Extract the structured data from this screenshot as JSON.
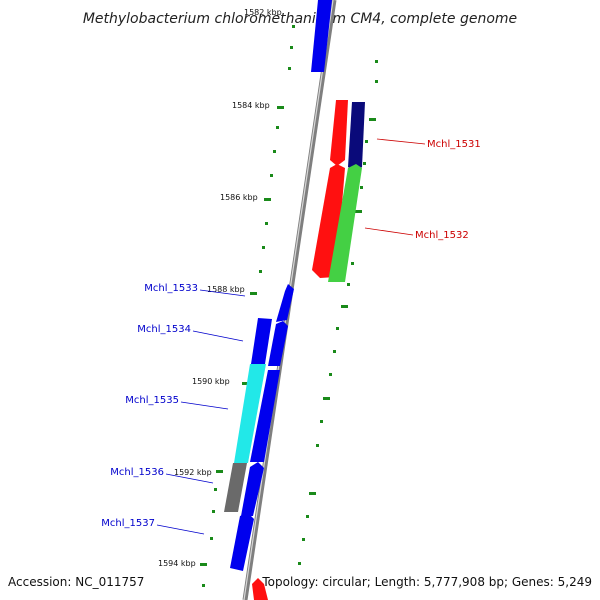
{
  "title": "Methylobacterium chloromethanicum CM4, complete genome",
  "footer": {
    "accession": "Accession: NC_011757",
    "summary": "Topology: circular; Length: 5,777,908 bp; Genes: 5,249"
  },
  "colors": {
    "backbone": "#8a8a8a",
    "tick": "#1a8a1a",
    "label_blue": "#0000cc",
    "label_red": "#cc0000"
  },
  "ticks": {
    "unit": "kbp",
    "major": [
      {
        "kbp": 1582,
        "label": "1582 kbp",
        "faded": true
      },
      {
        "kbp": 1584,
        "label": "1584 kbp"
      },
      {
        "kbp": 1586,
        "label": "1586 kbp"
      },
      {
        "kbp": 1588,
        "label": "1588 kbp"
      },
      {
        "kbp": 1590,
        "label": "1590 kbp"
      },
      {
        "kbp": 1592,
        "label": "1592 kbp"
      },
      {
        "kbp": 1594,
        "label": "1594 kbp"
      }
    ]
  },
  "genes": [
    {
      "name": "Mchl_1531",
      "label_color": "#cc0000"
    },
    {
      "name": "Mchl_1532",
      "label_color": "#cc0000"
    },
    {
      "name": "Mchl_1533",
      "label_color": "#0000cc"
    },
    {
      "name": "Mchl_1534",
      "label_color": "#0000cc"
    },
    {
      "name": "Mchl_1535",
      "label_color": "#0000cc"
    },
    {
      "name": "Mchl_1536",
      "label_color": "#0000cc"
    },
    {
      "name": "Mchl_1537",
      "label_color": "#0000cc"
    }
  ]
}
